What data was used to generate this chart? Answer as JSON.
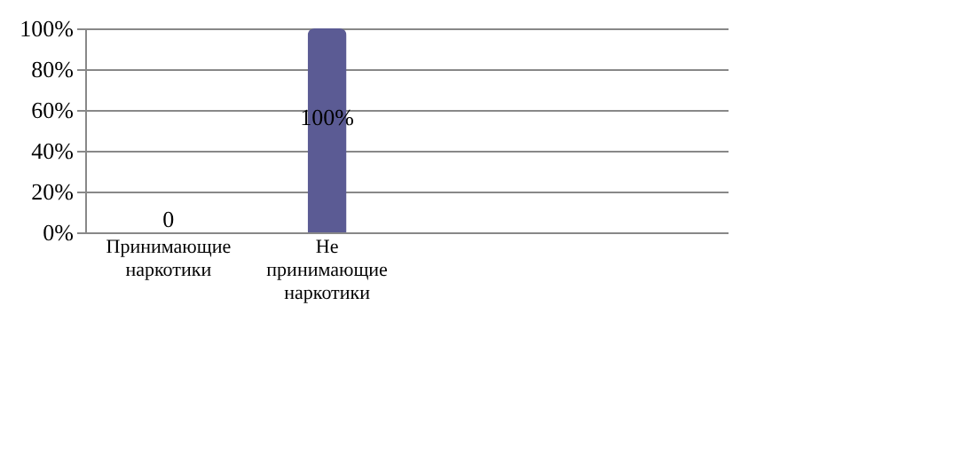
{
  "chart_data": {
    "type": "bar",
    "categories": [
      "Принимающие наркотики",
      "Не принимающие наркотики",
      null,
      null
    ],
    "values": [
      0,
      100,
      null,
      null
    ],
    "value_labels": [
      "0",
      "100%",
      null,
      null
    ],
    "color": "#5b5b94",
    "ylim": [
      0,
      100
    ],
    "yticks": [
      {
        "value": 0,
        "label": "0%"
      },
      {
        "value": 20,
        "label": "20%"
      },
      {
        "value": 40,
        "label": "40%"
      },
      {
        "value": 60,
        "label": "60%"
      },
      {
        "value": 80,
        "label": "80%"
      },
      {
        "value": 100,
        "label": "100%"
      }
    ],
    "grid": "y"
  }
}
